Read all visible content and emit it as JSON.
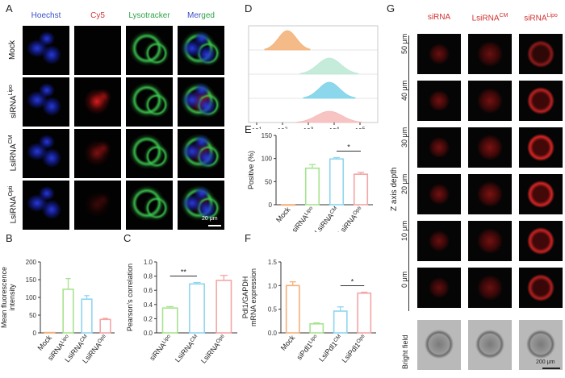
{
  "panel_letters": {
    "A": "A",
    "B": "B",
    "C": "C",
    "D": "D",
    "E": "E",
    "F": "F",
    "G": "G"
  },
  "panelA": {
    "columns": [
      "Hoechst",
      "Cy5",
      "Lysotracker",
      "Merged"
    ],
    "column_colors": [
      "#3a4ec8",
      "#d23a3a",
      "#2ea44a",
      "#3a4ec8"
    ],
    "rows": [
      {
        "base": "Mock",
        "sup": ""
      },
      {
        "base": "siRNA",
        "sup": "Lipo"
      },
      {
        "base": "LsiRNA",
        "sup": "CM"
      },
      {
        "base": "LsiRNA",
        "sup": "Opti"
      }
    ],
    "scale_bar": "20 μm"
  },
  "panelD": {
    "x_ticks": [
      {
        "base": "10",
        "sup": "1"
      },
      {
        "base": "10",
        "sup": "2"
      },
      {
        "base": "10",
        "sup": "3"
      },
      {
        "base": "10",
        "sup": "4"
      },
      {
        "base": "10",
        "sup": "5"
      }
    ],
    "histogram_colors": [
      "#f3b27a",
      "#bfe9d6",
      "#7fd3ea",
      "#f6bcbc"
    ]
  },
  "panelG": {
    "columns": [
      {
        "base": "siRNA",
        "sup": ""
      },
      {
        "base": "LsiRNA",
        "sup": "CM"
      },
      {
        "base": "siRNA",
        "sup": "Lipo"
      }
    ],
    "depths": [
      "50 μm",
      "40 μm",
      "30 μm",
      "20 μm",
      "10 μm",
      "0 μm"
    ],
    "axis_label": "Z axis depth",
    "bright_field": "Bright field",
    "scale_bar": "200 μm"
  },
  "chart_data": [
    {
      "panel": "B",
      "type": "bar",
      "ylabel": "Mean fluorescence intensity",
      "ylim": [
        0,
        200
      ],
      "yticks": [
        0,
        50,
        100,
        150,
        200
      ],
      "categories": [
        {
          "base": "Mock",
          "sup": ""
        },
        {
          "base": "siRNA",
          "sup": "Lipo"
        },
        {
          "base": "LsiRNA",
          "sup": "CM"
        },
        {
          "base": "LsiRNA",
          "sup": "Opti"
        }
      ],
      "values": [
        1,
        123,
        95,
        38
      ],
      "errors": [
        0,
        30,
        10,
        3
      ],
      "colors": [
        "#f5b07a",
        "#a6e48e",
        "#8fd6ef",
        "#f4a5a5"
      ]
    },
    {
      "panel": "C",
      "type": "bar",
      "ylabel": "Pearson's correlation",
      "ylim": [
        0,
        1.0
      ],
      "yticks": [
        0.0,
        0.2,
        0.4,
        0.6,
        0.8,
        1.0
      ],
      "categories": [
        {
          "base": "siRNA",
          "sup": "Lipo"
        },
        {
          "base": "LsiRNA",
          "sup": "CM"
        },
        {
          "base": "LsiRNA",
          "sup": "Opti"
        }
      ],
      "values": [
        0.35,
        0.69,
        0.74
      ],
      "errors": [
        0.02,
        0.02,
        0.07
      ],
      "colors": [
        "#a6e48e",
        "#8fd6ef",
        "#f4a5a5"
      ],
      "significance": [
        {
          "from": 0,
          "to": 1,
          "label": "**"
        }
      ]
    },
    {
      "panel": "E",
      "type": "bar",
      "ylabel": "Positive (%)",
      "ylim": [
        0,
        150
      ],
      "yticks": [
        0,
        50,
        100,
        150
      ],
      "categories": [
        {
          "base": "Mock",
          "sup": ""
        },
        {
          "base": "siRNA",
          "sup": "Lipo"
        },
        {
          "base": "LsiRNA",
          "sup": "CM"
        },
        {
          "base": "LsiRNA",
          "sup": "Opti"
        }
      ],
      "values": [
        0,
        79,
        99,
        66
      ],
      "errors": [
        0,
        8,
        3,
        4
      ],
      "colors": [
        "#f5b07a",
        "#a6e48e",
        "#8fd6ef",
        "#f4a5a5"
      ],
      "significance": [
        {
          "from": 2,
          "to": 3,
          "label": "*"
        }
      ]
    },
    {
      "panel": "F",
      "type": "bar",
      "ylabel": "Pdl1/GAPDH mRNA expression",
      "ylim": [
        0,
        1.5
      ],
      "yticks": [
        0.0,
        0.5,
        1.0,
        1.5
      ],
      "categories": [
        {
          "base": "Mock",
          "sup": ""
        },
        {
          "base": "siPdl1",
          "sup": "Lipo"
        },
        {
          "base": "LsiPdl1",
          "sup": "CM"
        },
        {
          "base": "LsiPdl1",
          "sup": "Opti"
        }
      ],
      "values": [
        1.0,
        0.19,
        0.46,
        0.84
      ],
      "errors": [
        0.08,
        0.02,
        0.09,
        0.02
      ],
      "colors": [
        "#f5b07a",
        "#a6e48e",
        "#8fd6ef",
        "#f4a5a5"
      ],
      "significance": [
        {
          "from": 2,
          "to": 3,
          "label": "*"
        }
      ]
    }
  ]
}
